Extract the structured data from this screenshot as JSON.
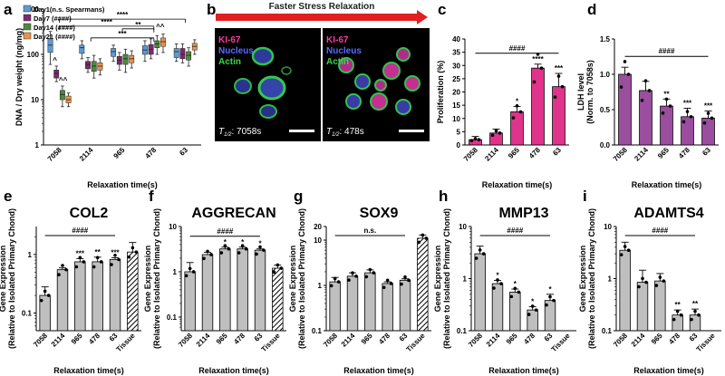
{
  "panel_labels": {
    "a": "a",
    "b": "b",
    "c": "c",
    "d": "d",
    "e": "e",
    "f": "f",
    "g": "g",
    "h": "h",
    "i": "i"
  },
  "colors": {
    "day1": "#5b9bd5",
    "day7": "#7b2a6f",
    "day14": "#4e8a3a",
    "day21": "#e8944a",
    "pink": "#e0338b",
    "purple": "#9b4d9e",
    "grey": "#bfbfbf",
    "arrow": "#e02020"
  },
  "panel_b": {
    "banner": "Faster Stress Relaxation",
    "left": {
      "ki67": "KI-67",
      "nucleus": "Nucleus",
      "actin": "Actin",
      "thalf": "T",
      "sub": "1/2",
      "time": ": 7058s"
    },
    "right": {
      "ki67": "KI-67",
      "nucleus": "Nucleus",
      "actin": "Actin",
      "thalf": "T",
      "sub": "1/2",
      "time": ": 478s"
    }
  },
  "chart_data": [
    {
      "id": "a",
      "type": "box",
      "ylabel": "DNA / Dry weight (ng/mg)",
      "xlabel": "Relaxation time(s)",
      "yscale": "log",
      "ylim": [
        1,
        1000
      ],
      "yticks": [
        1,
        10,
        100,
        1000
      ],
      "ytick_labels": [
        "1",
        "10",
        "100",
        "1000"
      ],
      "categories": [
        "7058",
        "2114",
        "965",
        "478",
        "63"
      ],
      "legend": [
        {
          "label": "Day1(n.s. Spearmans)",
          "color": "#5b9bd5"
        },
        {
          "label": "Day7 (####)",
          "color": "#7b2a6f"
        },
        {
          "label": "Day14 (####)",
          "color": "#4e8a3a"
        },
        {
          "label": "Day21 (####)",
          "color": "#e8944a"
        }
      ],
      "series": [
        {
          "name": "Day1",
          "color": "#5b9bd5",
          "boxes": [
            [
              60,
              110,
              160,
              220,
              320
            ],
            [
              80,
              105,
              140,
              160,
              200
            ],
            [
              70,
              90,
              115,
              135,
              160
            ],
            [
              70,
              100,
              125,
              155,
              200
            ],
            [
              70,
              85,
              115,
              135,
              170
            ]
          ]
        },
        {
          "name": "Day7",
          "color": "#7b2a6f",
          "boxes": [
            [
              25,
              30,
              38,
              45,
              55
            ],
            [
              40,
              48,
              60,
              70,
              85
            ],
            [
              45,
              60,
              75,
              90,
              110
            ],
            [
              80,
              100,
              130,
              165,
              220
            ],
            [
              65,
              80,
              100,
              135,
              170
            ]
          ]
        },
        {
          "name": "Day14",
          "color": "#4e8a3a",
          "boxes": [
            [
              7,
              10,
              13,
              16,
              20
            ],
            [
              30,
              42,
              55,
              70,
              95
            ],
            [
              40,
              60,
              80,
              100,
              130
            ],
            [
              100,
              140,
              170,
              200,
              260
            ],
            [
              55,
              75,
              95,
              115,
              140
            ]
          ]
        },
        {
          "name": "Day21",
          "color": "#e8944a",
          "boxes": [
            [
              7,
              8.5,
              10,
              12,
              14
            ],
            [
              35,
              45,
              55,
              65,
              80
            ],
            [
              50,
              65,
              80,
              95,
              120
            ],
            [
              110,
              150,
              190,
              230,
              280
            ],
            [
              100,
              125,
              150,
              175,
              210
            ]
          ]
        }
      ],
      "annotations": [
        "^",
        "^^",
        "***",
        "**",
        "****",
        "****",
        "^^"
      ]
    },
    {
      "id": "c",
      "type": "bar",
      "ylabel": "Proliferation (%)",
      "xlabel": "Relaxation time(s)",
      "ylim": [
        0,
        40
      ],
      "yticks": [
        0,
        5,
        10,
        15,
        20,
        25,
        30,
        35,
        40
      ],
      "categories": [
        "7058",
        "2114",
        "965",
        "478",
        "63"
      ],
      "values": [
        2,
        4.5,
        12.5,
        29,
        22
      ],
      "errors": [
        1.2,
        1.5,
        2,
        1.5,
        5
      ],
      "sig": [
        "",
        "",
        "*",
        "****",
        "***"
      ],
      "overall": "####"
    },
    {
      "id": "d",
      "type": "bar",
      "ylabel": "LDH level",
      "ylabel2": "(Norm. to 7058s)",
      "xlabel": "Relaxation time(s)",
      "ylim": [
        0,
        1.5
      ],
      "yticks": [
        0,
        0.5,
        1,
        1.5
      ],
      "ytick_labels": [
        "0.0",
        "0.5",
        "1.0",
        "1.5"
      ],
      "categories": [
        "7058",
        "2114",
        "965",
        "478",
        "63"
      ],
      "values": [
        1.0,
        0.77,
        0.55,
        0.4,
        0.38
      ],
      "errors": [
        0.1,
        0.13,
        0.1,
        0.12,
        0.1
      ],
      "sig": [
        "",
        "",
        "**",
        "***",
        "***"
      ],
      "overall": "####"
    },
    {
      "id": "e",
      "type": "bar",
      "title": "COL2",
      "ylabel": "Gene Expression",
      "ylabel2": "(Relative to Isolated Primary Chond)",
      "xlabel": "Relaxation time(s)",
      "yscale": "log",
      "ylim": [
        0.05,
        3
      ],
      "yticks": [
        0.1,
        1
      ],
      "ytick_labels": [
        "0.1",
        "1"
      ],
      "categories": [
        "7058",
        "2114",
        "965",
        "478",
        "63",
        "Tissue"
      ],
      "values": [
        0.2,
        0.55,
        0.75,
        0.75,
        0.82,
        1.1
      ],
      "errors": [
        0.08,
        0.04,
        0.1,
        0.15,
        0.06,
        0.5
      ],
      "sig": [
        "",
        "",
        "***",
        "**",
        "***",
        ""
      ],
      "overall": "####"
    },
    {
      "id": "f",
      "type": "bar",
      "title": "AGGRECAN",
      "ylabel": "Gene Expression",
      "ylabel2": "(Relative to Isolated Primary Chond)",
      "xlabel": "Relaxation time(s)",
      "yscale": "log",
      "ylim": [
        0.05,
        10
      ],
      "yticks": [
        0.1,
        1,
        10
      ],
      "ytick_labels": [
        "0.1",
        "1",
        "10"
      ],
      "categories": [
        "7058",
        "2114",
        "965",
        "478",
        "63",
        "Tissue"
      ],
      "values": [
        1.0,
        2.4,
        3.2,
        3.2,
        3.0,
        1.2
      ],
      "errors": [
        0.6,
        0.3,
        0.3,
        0.3,
        0.2,
        0.2
      ],
      "sig": [
        "",
        "",
        "*",
        "*",
        "*",
        ""
      ],
      "overall": "####"
    },
    {
      "id": "g",
      "type": "bar",
      "title": "SOX9",
      "ylabel": "Gene Expression",
      "ylabel2": "(Relative to Isolated Primary Chond)",
      "xlabel": "Relaxation time(s)",
      "yscale": "log",
      "ylim": [
        0.1,
        20
      ],
      "yticks": [
        0.1,
        1,
        10,
        20
      ],
      "ytick_labels": [
        "0.1",
        "1",
        "10",
        "20"
      ],
      "categories": [
        "7058",
        "2114",
        "965",
        "478",
        "63",
        "Tissue"
      ],
      "values": [
        1.2,
        1.6,
        1.9,
        1.1,
        1.3,
        11
      ],
      "errors": [
        0.3,
        0.3,
        0.3,
        0.1,
        0.1,
        2
      ],
      "sig": [
        "",
        "",
        "",
        "",
        "",
        ""
      ],
      "overall": "n.s."
    },
    {
      "id": "h",
      "type": "bar",
      "title": "MMP13",
      "ylabel": "Gene Expression",
      "ylabel2": "(Relative to Isolated Primary Chond)",
      "xlabel": "Relaxation time(s)",
      "yscale": "log",
      "ylim": [
        0.1,
        10
      ],
      "yticks": [
        0.1,
        1,
        10
      ],
      "ytick_labels": [
        "0.1",
        "1",
        "10"
      ],
      "categories": [
        "7058",
        "2114",
        "965",
        "478",
        "63",
        "Tissue"
      ],
      "values": [
        3.0,
        0.8,
        0.55,
        0.25,
        0.38,
        null
      ],
      "errors": [
        1.2,
        0.12,
        0.08,
        0.04,
        0.12,
        0
      ],
      "sig": [
        "",
        "*",
        "*",
        "*",
        "*",
        ""
      ],
      "overall": "####"
    },
    {
      "id": "i",
      "type": "bar",
      "title": "ADAMTS4",
      "ylabel": "Gene Expression",
      "ylabel2": "(Relative to Isolated Primary Chond)",
      "xlabel": "Relaxation time(s)",
      "yscale": "log",
      "ylim": [
        0.1,
        10
      ],
      "yticks": [
        0.1,
        1,
        10
      ],
      "ytick_labels": [
        "0.1",
        "1",
        "10"
      ],
      "categories": [
        "7058",
        "2114",
        "965",
        "478",
        "63",
        "Tissue"
      ],
      "values": [
        3.5,
        0.85,
        0.9,
        0.2,
        0.2,
        null
      ],
      "errors": [
        1.5,
        0.6,
        0.35,
        0.05,
        0.06,
        0
      ],
      "sig": [
        "",
        "",
        "",
        "**",
        "**",
        ""
      ],
      "overall": "####"
    }
  ]
}
